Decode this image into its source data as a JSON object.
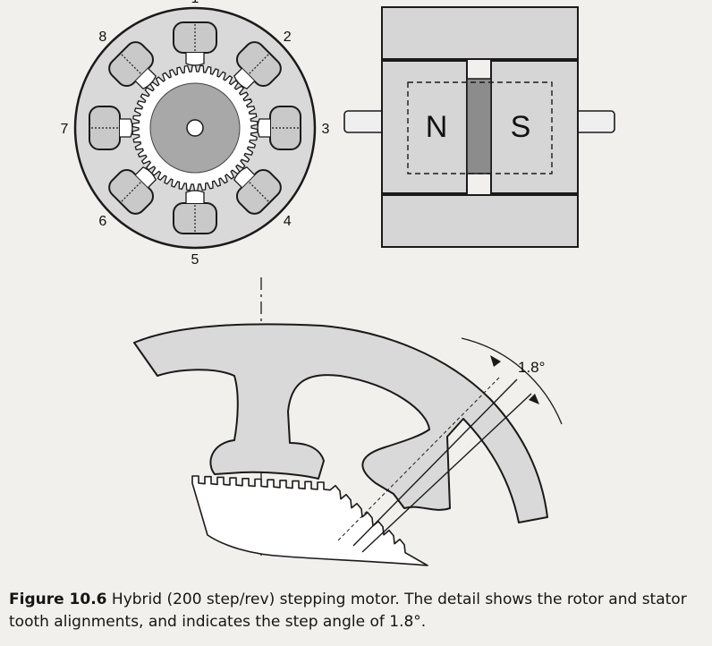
{
  "stator_labels": [
    "1",
    "2",
    "3",
    "4",
    "5",
    "6",
    "7",
    "8"
  ],
  "magnet": {
    "north": "N",
    "south": "S"
  },
  "detail": {
    "step_angle_label": "1.8°"
  },
  "caption": {
    "label": "Figure 10.6",
    "text": "Hybrid (200 step/rev) stepping motor. The detail shows the rotor and stator tooth alignments, and indicates the step angle of 1.8°."
  },
  "colors": {
    "background": "#f2f0ec",
    "stator": "#d9d9d9",
    "rotor_core": "#a8a8a8",
    "magnet_core": "#8c8c8c",
    "ink": "#1a1a1a"
  }
}
